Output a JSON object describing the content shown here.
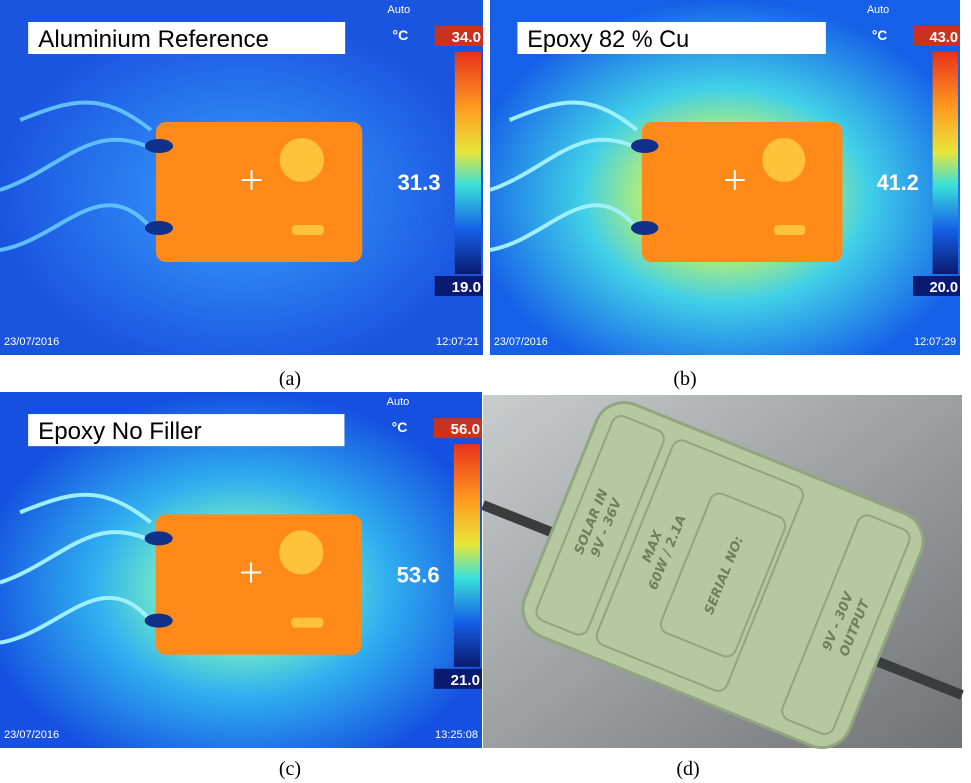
{
  "panels": [
    {
      "label": "Aluminium Reference",
      "mode": "Auto",
      "unit": "°C",
      "max": "34.0",
      "min": "19.0",
      "spot": "31.3",
      "date": "23/07/2016",
      "time": "12:07:21",
      "caption": "(a)"
    },
    {
      "label": "Epoxy 82 % Cu",
      "mode": "Auto",
      "unit": "°C",
      "max": "43.0",
      "min": "20.0",
      "spot": "41.2",
      "date": "23/07/2016",
      "time": "12:07:29",
      "caption": "(b)"
    },
    {
      "label": "Epoxy No Filler",
      "mode": "Auto",
      "unit": "°C",
      "max": "56.0",
      "min": "21.0",
      "spot": "53.6",
      "date": "23/07/2016",
      "time": "13:25:08",
      "caption": "(c)"
    }
  ],
  "product": {
    "input": "SOLAR IN",
    "input_range": "9V - 36V",
    "max": "MAX",
    "rating": "60W / 2.1A",
    "serial": "SERIAL NO:",
    "output_range": "9V - 30V",
    "output": "OUTPUT",
    "caption": "(d)"
  }
}
